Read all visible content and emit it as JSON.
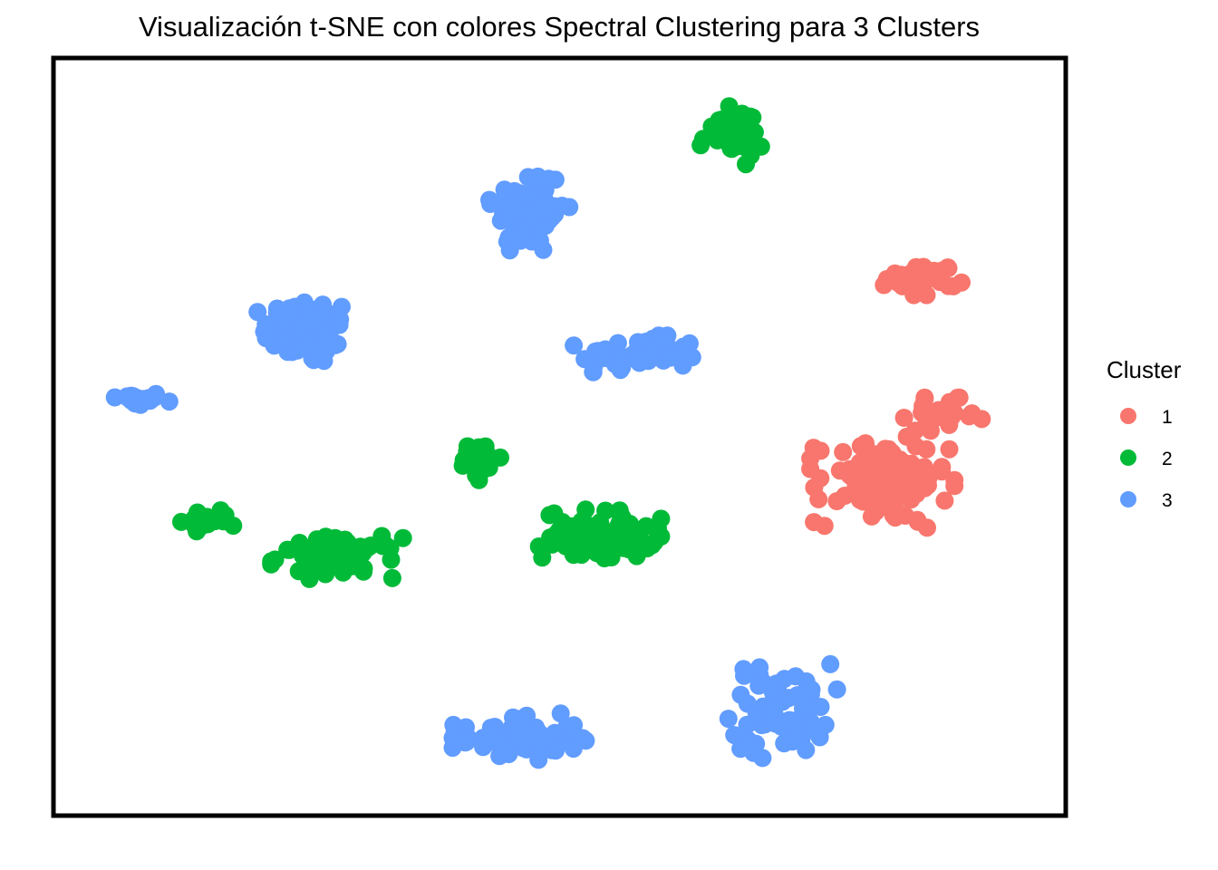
{
  "chart_data": {
    "type": "scatter",
    "title": "Visualización t-SNE con colores Spectral Clustering para 3 Clusters",
    "xlabel": "",
    "ylabel": "",
    "xlim": [
      0,
      100
    ],
    "ylim": [
      0,
      100
    ],
    "grid": false,
    "axes_visible": false,
    "legend": {
      "title": "Cluster",
      "position": "right",
      "entries": [
        {
          "label": "1",
          "color": "#F8766D"
        },
        {
          "label": "2",
          "color": "#00BA38"
        },
        {
          "label": "3",
          "color": "#619CFF"
        }
      ]
    },
    "clusters": [
      {
        "cluster": "3",
        "center": [
          8,
          55
        ],
        "spread": [
          3.0,
          0.9
        ],
        "n": 22
      },
      {
        "cluster": "3",
        "center": [
          25,
          64
        ],
        "spread": [
          4.5,
          4.5
        ],
        "n": 70
      },
      {
        "cluster": "3",
        "center": [
          47,
          80
        ],
        "spread": [
          3.6,
          6.0
        ],
        "n": 85
      },
      {
        "cluster": "3",
        "center": [
          58,
          61
        ],
        "spread": [
          6.0,
          2.2
        ],
        "n": 60
      },
      {
        "cluster": "3",
        "center": [
          46,
          10
        ],
        "spread": [
          6.0,
          3.0
        ],
        "n": 65
      },
      {
        "cluster": "3",
        "center": [
          72,
          14
        ],
        "spread": [
          5.0,
          6.0
        ],
        "n": 65
      },
      {
        "cluster": "2",
        "center": [
          67,
          90
        ],
        "spread": [
          3.2,
          3.5
        ],
        "n": 35
      },
      {
        "cluster": "2",
        "center": [
          15,
          39
        ],
        "spread": [
          2.4,
          1.4
        ],
        "n": 22
      },
      {
        "cluster": "2",
        "center": [
          28,
          34
        ],
        "spread": [
          6.0,
          2.6
        ],
        "n": 65
      },
      {
        "cluster": "2",
        "center": [
          42,
          47
        ],
        "spread": [
          2.2,
          2.5
        ],
        "n": 30
      },
      {
        "cluster": "2",
        "center": [
          54,
          37
        ],
        "spread": [
          5.5,
          3.2
        ],
        "n": 85
      },
      {
        "cluster": "1",
        "center": [
          86,
          71
        ],
        "spread": [
          3.5,
          2.0
        ],
        "n": 35
      },
      {
        "cluster": "1",
        "center": [
          82,
          44
        ],
        "spread": [
          6.5,
          5.5
        ],
        "n": 120
      },
      {
        "cluster": "1",
        "center": [
          88,
          53
        ],
        "spread": [
          3.5,
          2.0
        ],
        "n": 30
      }
    ]
  }
}
